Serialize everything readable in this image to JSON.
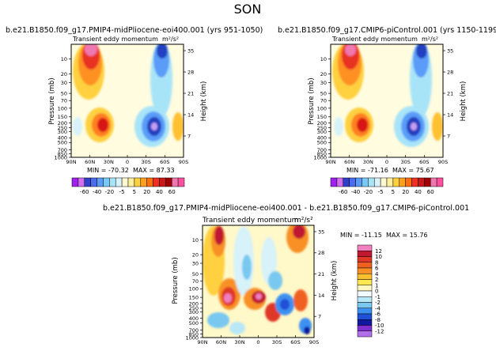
{
  "page_title": "SON",
  "panels": [
    {
      "case_title": "b.e21.B1850.f09_g17.PMIP4-midPliocene-eoi400.001 (yrs 951-1050)",
      "subtitle": "Transient eddy momentum",
      "units": "m²/s²",
      "min_text": "MIN = -70.32",
      "max_text": "MAX = 87.33"
    },
    {
      "case_title": "b.e21.B1850.f09_g17.CMIP6-piControl.001 (yrs 1150-1199)",
      "subtitle": "Transient eddy momentum",
      "units": "m²/s²",
      "min_text": "MIN = -71.16",
      "max_text": "MAX = 75.67"
    },
    {
      "case_title": "b.e21.B1850.f09_g17.PMIP4-midPliocene-eoi400.001 - b.e21.B1850.f09_g17.CMIP6-piControl.001",
      "subtitle": "Transient eddy momentum",
      "units": "m²/s²",
      "min_text": "MIN = -11.15",
      "max_text": "MAX = 15.76"
    }
  ],
  "axes": {
    "ylabel_left": "Pressure (mb)",
    "ylabel_right": "Height (km)",
    "pressure_ticks": [
      "10",
      "20",
      "30",
      "50",
      "70",
      "100",
      "150",
      "200",
      "250",
      "300",
      "400",
      "500",
      "700",
      "850",
      "1000"
    ],
    "height_ticks": [
      "35",
      "28",
      "21",
      "14",
      "7"
    ],
    "lat_ticks": [
      "90N",
      "60N",
      "30N",
      "0",
      "30S",
      "60S",
      "90S"
    ]
  },
  "colorbar_main": {
    "labels": [
      "-60",
      "-40",
      "-20",
      "-5",
      "5",
      "20",
      "40",
      "60"
    ],
    "colors": [
      "#a020f0",
      "#d070f0",
      "#3040c8",
      "#4c6cf0",
      "#5a9cf8",
      "#78c8f8",
      "#a8e4f8",
      "#d8f2fa",
      "#fff8d0",
      "#fff0a0",
      "#ffd040",
      "#ffa020",
      "#ff7010",
      "#f03020",
      "#c81818",
      "#a00000",
      "#f078b0",
      "#ff50a0"
    ]
  },
  "colorbar_diff": {
    "labels": [
      "12",
      "10",
      "8",
      "6",
      "4",
      "2",
      "1",
      "0",
      "-1",
      "-2",
      "-4",
      "-6",
      "-8",
      "-10",
      "-12"
    ],
    "colors": [
      "#f080c0",
      "#c01830",
      "#e03828",
      "#f06020",
      "#f89028",
      "#ffc030",
      "#ffe850",
      "#fff8c0",
      "#f0faff",
      "#b8e8f8",
      "#78c8f0",
      "#3c90f0",
      "#2050d8",
      "#1018a0",
      "#8030d0",
      "#b070e8"
    ]
  },
  "chart_data": [
    {
      "type": "heatmap",
      "title": "Transient eddy momentum",
      "case": "b.e21.B1850.f09_g17.PMIP4-midPliocene-eoi400.001 (yrs 951-1050)",
      "season": "SON",
      "units": "m²/s²",
      "x": "latitude",
      "x_range": [
        "90N",
        "90S"
      ],
      "y": "pressure (mb)",
      "y_range": [
        1000,
        5
      ],
      "min": -70.32,
      "max": 87.33,
      "features": [
        {
          "lat": 55,
          "p": 8,
          "value": 70
        },
        {
          "lat": 40,
          "p": 200,
          "value": 50
        },
        {
          "lat": -45,
          "p": 8,
          "value": -60
        },
        {
          "lat": -45,
          "p": 200,
          "value": -70
        },
        {
          "lat": -65,
          "p": 200,
          "value": 20
        }
      ]
    },
    {
      "type": "heatmap",
      "title": "Transient eddy momentum",
      "case": "b.e21.B1850.f09_g17.CMIP6-piControl.001 (yrs 1150-1199)",
      "season": "SON",
      "units": "m²/s²",
      "x": "latitude",
      "x_range": [
        "90N",
        "90S"
      ],
      "y": "pressure (mb)",
      "y_range": [
        1000,
        5
      ],
      "min": -71.16,
      "max": 75.67,
      "features": [
        {
          "lat": 55,
          "p": 8,
          "value": 60
        },
        {
          "lat": 40,
          "p": 200,
          "value": 45
        },
        {
          "lat": -45,
          "p": 8,
          "value": -55
        },
        {
          "lat": -45,
          "p": 200,
          "value": -70
        },
        {
          "lat": -65,
          "p": 200,
          "value": 15
        }
      ]
    },
    {
      "type": "heatmap",
      "title": "Transient eddy momentum (difference)",
      "case": "b.e21.B1850.f09_g17.PMIP4-midPliocene-eoi400.001 - b.e21.B1850.f09_g17.CMIP6-piControl.001",
      "season": "SON",
      "units": "m²/s²",
      "x": "latitude",
      "x_range": [
        "90N",
        "90S"
      ],
      "y": "pressure (mb)",
      "y_range": [
        1000,
        5
      ],
      "min": -11.15,
      "max": 15.76,
      "features": [
        {
          "lat": 60,
          "p": 10,
          "value": 10
        },
        {
          "lat": 50,
          "p": 250,
          "value": 14
        },
        {
          "lat": 0,
          "p": 200,
          "value": 10
        },
        {
          "lat": -30,
          "p": 300,
          "value": 6
        },
        {
          "lat": -60,
          "p": 10,
          "value": 8
        },
        {
          "lat": 40,
          "p": 400,
          "value": -4
        },
        {
          "lat": -45,
          "p": 400,
          "value": -6
        },
        {
          "lat": -75,
          "p": 850,
          "value": -10
        }
      ]
    }
  ]
}
